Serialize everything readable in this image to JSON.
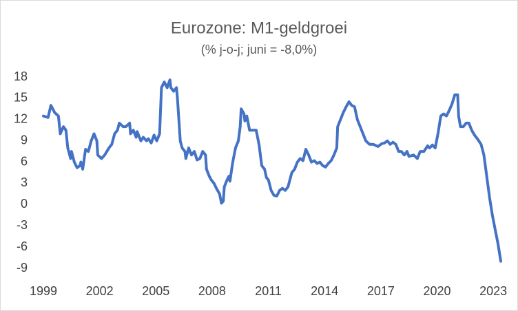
{
  "chart_data": {
    "type": "line",
    "title": "Eurozone: M1-geldgroei",
    "subtitle": "(% j-o-j; juni = -8,0%)",
    "series": [
      {
        "name": "M1",
        "color": "#4472c4",
        "x": [
          1999.0,
          1999.25,
          1999.4,
          1999.6,
          1999.8,
          1999.9,
          2000.07,
          2000.2,
          2000.3,
          2000.45,
          2000.5,
          2000.65,
          2000.8,
          2000.95,
          2001.0,
          2001.1,
          2001.25,
          2001.4,
          2001.55,
          2001.7,
          2001.85,
          2001.9,
          2002.1,
          2002.27,
          2002.5,
          2002.65,
          2002.8,
          2002.95,
          2003.05,
          2003.25,
          2003.4,
          2003.6,
          2003.65,
          2003.8,
          2003.95,
          2004.0,
          2004.2,
          2004.33,
          2004.5,
          2004.6,
          2004.75,
          2004.9,
          2005.05,
          2005.2,
          2005.3,
          2005.45,
          2005.6,
          2005.75,
          2005.8,
          2005.95,
          2006.1,
          2006.15,
          2006.3,
          2006.4,
          2006.55,
          2006.6,
          2006.75,
          2006.9,
          2007.05,
          2007.2,
          2007.35,
          2007.5,
          2007.65,
          2007.7,
          2007.85,
          2007.95,
          2008.1,
          2008.25,
          2008.4,
          2008.5,
          2008.6,
          2008.65,
          2008.8,
          2008.9,
          2008.95,
          2009.1,
          2009.25,
          2009.4,
          2009.5,
          2009.55,
          2009.7,
          2009.75,
          2009.85,
          2010.0,
          2010.2,
          2010.35,
          2010.5,
          2010.65,
          2010.8,
          2010.9,
          2011.0,
          2011.15,
          2011.3,
          2011.45,
          2011.6,
          2011.75,
          2011.9,
          2012.05,
          2012.1,
          2012.25,
          2012.4,
          2012.55,
          2012.7,
          2012.85,
          2013.0,
          2013.15,
          2013.3,
          2013.45,
          2013.6,
          2013.75,
          2013.9,
          2014.05,
          2014.2,
          2014.35,
          2014.5,
          2014.65,
          2014.7,
          2014.85,
          2015.0,
          2015.15,
          2015.3,
          2015.45,
          2015.6,
          2015.75,
          2015.9,
          2016.05,
          2016.2,
          2016.4,
          2016.6,
          2016.85,
          2017.05,
          2017.2,
          2017.35,
          2017.5,
          2017.65,
          2017.8,
          2017.95,
          2018.1,
          2018.25,
          2018.4,
          2018.5,
          2018.75,
          2018.95,
          2019.1,
          2019.3,
          2019.5,
          2019.6,
          2019.75,
          2019.9,
          2020.05,
          2020.2,
          2020.35,
          2020.5,
          2020.65,
          2020.8,
          2020.95,
          2021.1,
          2021.15,
          2021.25,
          2021.4,
          2021.55,
          2021.7,
          2021.85,
          2022.0,
          2022.15,
          2022.35,
          2022.5,
          2022.65,
          2022.8,
          2022.95,
          2023.1,
          2023.25,
          2023.4
        ],
        "values": [
          12.5,
          12.3,
          14,
          13,
          12.5,
          10,
          11,
          10.5,
          8,
          6.5,
          7.5,
          6,
          5.2,
          5.5,
          6,
          5.0,
          7.8,
          7.5,
          9,
          10,
          9,
          7,
          6.5,
          7,
          8,
          8.5,
          10,
          10.5,
          11.5,
          11,
          11,
          11.5,
          10,
          10.5,
          9.5,
          10.3,
          9,
          9.5,
          9,
          9.3,
          8.7,
          9.8,
          9,
          10,
          16.5,
          17.3,
          16.5,
          17.6,
          16.5,
          16,
          16.5,
          15,
          9,
          8,
          7.5,
          6.5,
          8,
          7,
          7.5,
          6.3,
          6.5,
          7.5,
          7,
          5,
          4,
          3.5,
          3,
          2.2,
          1.5,
          0.2,
          0.5,
          2.5,
          3.5,
          4,
          3.3,
          6,
          8,
          9,
          11,
          13.5,
          12.8,
          11.8,
          12.5,
          10.5,
          10.5,
          10.5,
          8.5,
          5.5,
          5,
          3.8,
          3.5,
          2,
          1.3,
          1.2,
          2,
          2.3,
          2,
          2.5,
          3,
          4.5,
          5,
          6,
          6.5,
          6.2,
          7.8,
          7,
          6,
          6.2,
          5.8,
          6,
          5.5,
          5.3,
          5.8,
          6.2,
          7,
          8,
          11,
          12,
          13,
          13.8,
          14.5,
          14,
          13.8,
          12,
          11,
          10,
          9,
          8.5,
          8.5,
          8.2,
          8.6,
          8.7,
          9,
          8.5,
          8.8,
          8.5,
          7.5,
          7.5,
          7,
          7.5,
          6.8,
          7,
          6.5,
          7.5,
          7.5,
          8.3,
          8,
          8.4,
          8,
          10,
          12.5,
          12.8,
          12.5,
          13.3,
          14.2,
          15.5,
          15.5,
          12.5,
          11,
          11,
          11.5,
          11.5,
          10.5,
          9.8,
          9.3,
          8.5,
          7,
          4,
          1,
          -1.5,
          -3.5,
          -5.5,
          -8
        ]
      }
    ],
    "xlim": [
      1999,
      2023.4
    ],
    "xticks": [
      1999,
      2002,
      2005,
      2008,
      2011,
      2014,
      2017,
      2020,
      2023
    ],
    "ylim": [
      -9,
      18
    ],
    "yticks": [
      -9,
      -6,
      -3,
      0,
      3,
      6,
      9,
      12,
      15,
      18
    ],
    "grid": false
  }
}
